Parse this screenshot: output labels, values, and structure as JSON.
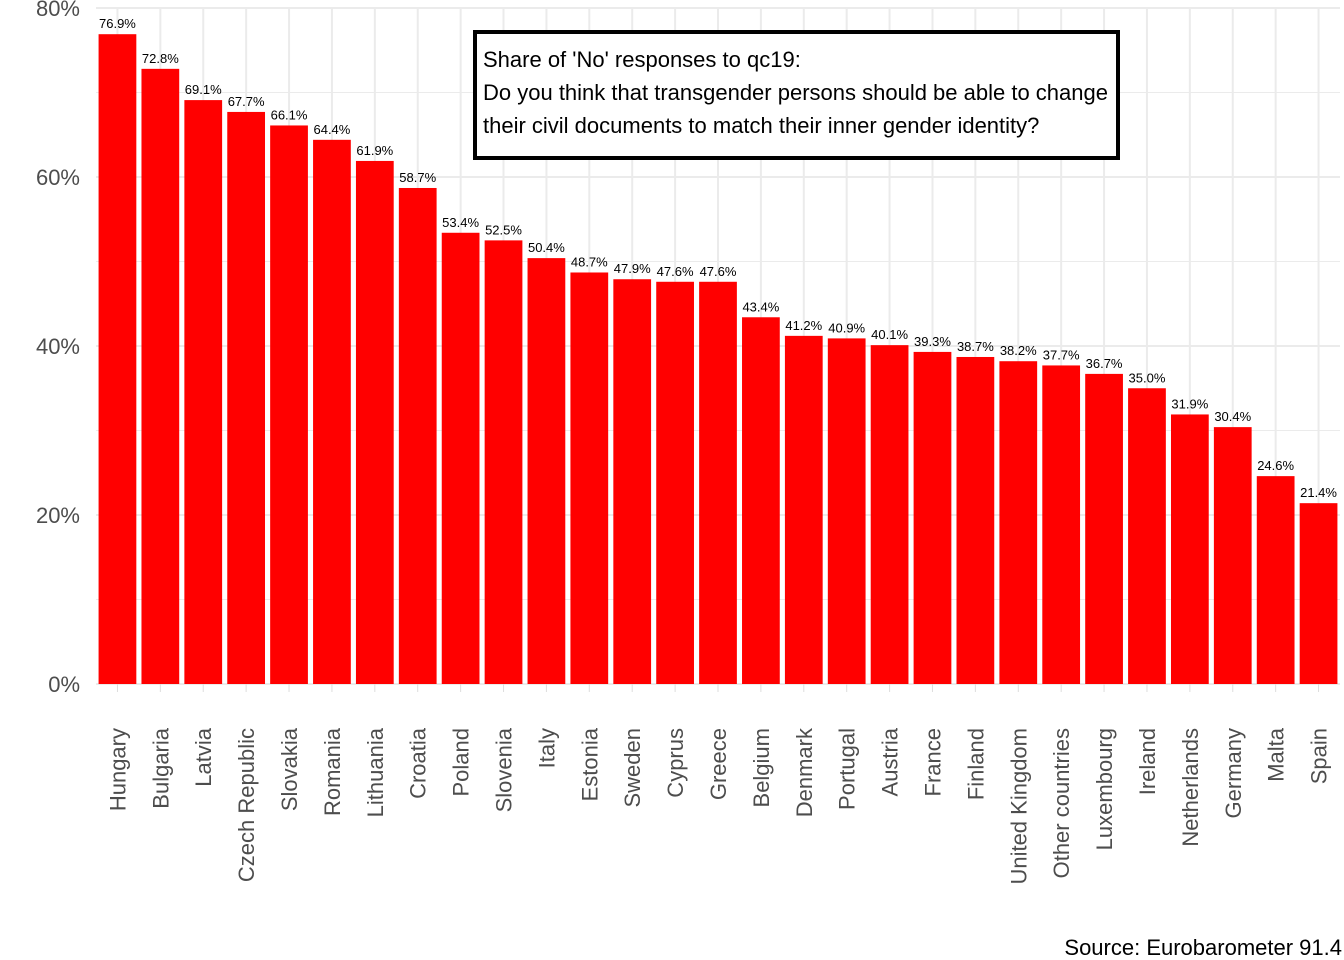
{
  "chart_data": {
    "type": "bar",
    "categories": [
      "Hungary",
      "Bulgaria",
      "Latvia",
      "Czech Republic",
      "Slovakia",
      "Romania",
      "Lithuania",
      "Croatia",
      "Poland",
      "Slovenia",
      "Italy",
      "Estonia",
      "Sweden",
      "Cyprus",
      "Greece",
      "Belgium",
      "Denmark",
      "Portugal",
      "Austria",
      "France",
      "Finland",
      "United Kingdom",
      "Other countries",
      "Luxembourg",
      "Ireland",
      "Netherlands",
      "Germany",
      "Malta",
      "Spain"
    ],
    "values": [
      76.9,
      72.8,
      69.1,
      67.7,
      66.1,
      64.4,
      61.9,
      58.7,
      53.4,
      52.5,
      50.4,
      48.7,
      47.9,
      47.6,
      47.6,
      43.4,
      41.2,
      40.9,
      40.1,
      39.3,
      38.7,
      38.2,
      37.7,
      36.7,
      35.0,
      31.9,
      30.4,
      24.6,
      21.4
    ],
    "data_labels": [
      "76.9%",
      "72.8%",
      "69.1%",
      "67.7%",
      "66.1%",
      "64.4%",
      "61.9%",
      "58.7%",
      "53.4%",
      "52.5%",
      "50.4%",
      "48.7%",
      "47.9%",
      "47.6%",
      "47.6%",
      "43.4%",
      "41.2%",
      "40.9%",
      "40.1%",
      "39.3%",
      "38.7%",
      "38.2%",
      "37.7%",
      "36.7%",
      "35.0%",
      "31.9%",
      "30.4%",
      "24.6%",
      "21.4%"
    ],
    "yticks": [
      0,
      20,
      40,
      60,
      80
    ],
    "ytick_labels": [
      "0%",
      "20%",
      "40%",
      "60%",
      "80%"
    ],
    "ylim": [
      0,
      80
    ],
    "grid": true,
    "legend": "none",
    "bar_color": "#ff0000",
    "annotation_lines": [
      "Share of 'No' responses to qc19:",
      "Do you think that transgender persons should be able to change",
      "their civil documents to match their inner gender identity?"
    ],
    "caption": "Source: Eurobarometer 91.4",
    "xlabel": "",
    "ylabel": ""
  }
}
